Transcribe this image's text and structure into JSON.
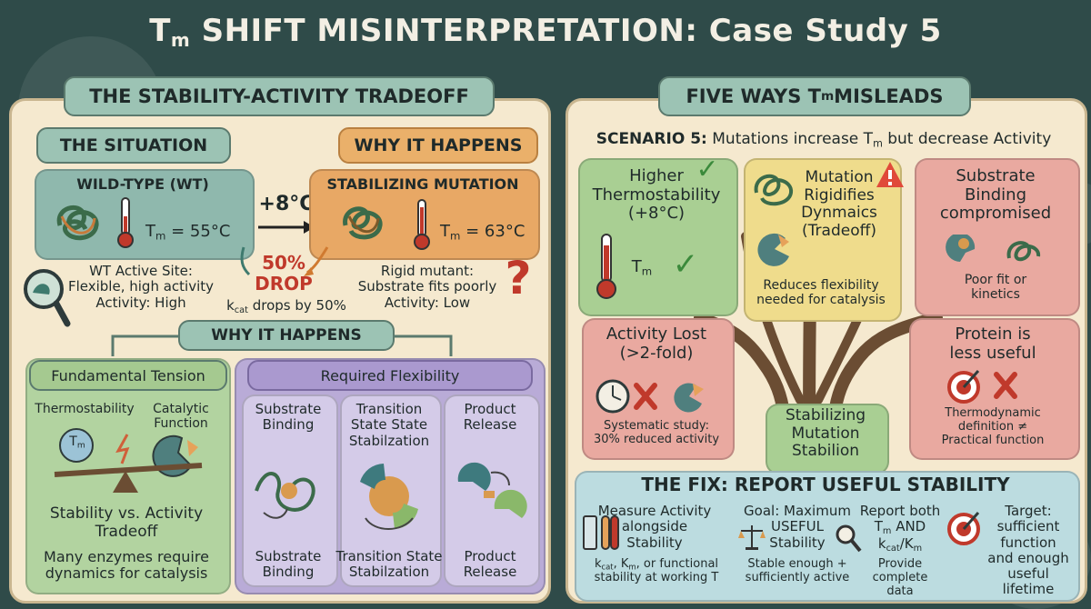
{
  "title": {
    "main": "T",
    "sub": "m",
    "rest": " SHIFT MISINTERPRETATION: Case Study 5"
  },
  "left": {
    "header": "THE STABILITY-ACTIVITY TRADEOFF",
    "situation_label": "THE SITUATION",
    "why_label": "WHY IT HAPPENS",
    "wt": {
      "title": "WILD-TYPE (WT)",
      "tm": "= 55°C"
    },
    "shift": "+8°C",
    "mut": {
      "title": "STABILIZING MUTATION",
      "tm": "= 63°C"
    },
    "drop": "50%\nDROP",
    "kcat": "drops by 50%",
    "wt_site": "WT Active Site:\nFlexible, high activity\nActivity: High",
    "mut_site": "Rigid mutant:\nSubstrate fits poorly\nActivity: Low",
    "why_label2": "WHY IT HAPPENS",
    "tension": {
      "title": "Fundamental Tension",
      "thermo": "Thermostability",
      "catalytic": "Catalytic\nFunction",
      "tm_symbol": "T",
      "tradeoff": "Stability vs. Activity\nTradeoff",
      "note": "Many enzymes require\ndynamics for catalysis"
    },
    "flex": {
      "title": "Required Flexibility",
      "cols": [
        {
          "top": "Substrate\nBinding",
          "bottom": "Substrate\nBinding"
        },
        {
          "top": "Transition\nState State\nStabilzation",
          "bottom": "Transition State\nStabilzation"
        },
        {
          "top": "Product\nRelease",
          "bottom": "Product\nRelease"
        }
      ]
    }
  },
  "right": {
    "header_pre": "FIVE WAYS T",
    "header_sub": "m",
    "header_post": " MISLEADS",
    "scenario_bold": "SCENARIO 5:",
    "scenario_pre": " Mutations increase T",
    "scenario_sub": "m",
    "scenario_post": " but decrease Activity",
    "cards": {
      "higher": "Higher\nThermostability\n(+8°C)",
      "higher_tm": "T",
      "rigid": "Mutation\nRigidifies\nDynmaics\n(Tradeoff)",
      "rigid_note": "Reduces flexibility\nneeded for catalysis",
      "substrate": "Substrate\nBinding\ncompromised",
      "substrate_note": "Poor fit or\nkinetics",
      "lost": "Activity Lost\n(>2-fold)",
      "lost_note": "Systematic study:\n30% reduced activity",
      "useful": "Protein is\nless useful",
      "useful_note": "Thermodynamic\ndefinition ≠\nPractical function",
      "center": "Stabilizing\nMutation\nStabilion"
    },
    "fix": {
      "title": "THE FIX: REPORT USEFUL STABILITY",
      "items": [
        {
          "head": "Measure Activity\nalongside\nStability",
          "note": "k_cat, K_m, or functional\nstability at working T"
        },
        {
          "head": "Goal: Maximum\nUSEFUL\nStability",
          "note": "Stable enough +\nsufficiently active"
        },
        {
          "head": "Report both\nT_m AND\nk_cat/K_m",
          "note": "Provide\ncomplete data"
        },
        {
          "head": "Target:\nsufficient\nfunction\nand enough\nuseful lifetime",
          "note": ""
        }
      ]
    }
  },
  "colors": {
    "teal": "#9cc3b4",
    "orange": "#e8a865",
    "red": "#c0392b",
    "green": "#a9cf93",
    "purple": "#b7a8d6",
    "pink": "#e9a9a0",
    "yellow": "#f0dc8c",
    "lightblue": "#bcdce0"
  }
}
